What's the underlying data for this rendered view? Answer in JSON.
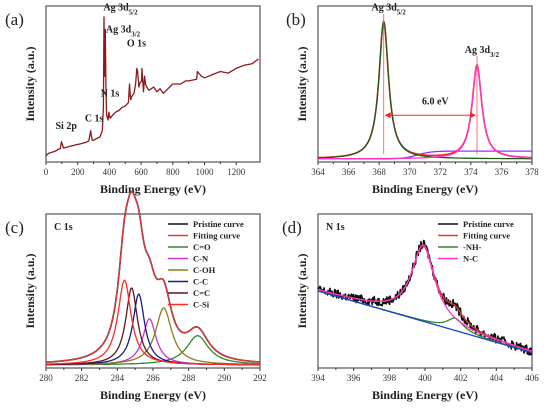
{
  "chart_data": [
    {
      "panel_label": "(a)",
      "type": "line",
      "xlabel": "Binding Energy (eV)",
      "ylabel": "Intensity (a.u.)",
      "xlim": [
        0,
        1350
      ],
      "xticks": [
        0,
        200,
        400,
        600,
        800,
        1000,
        1200
      ],
      "ylim": [
        0,
        1
      ],
      "series": [
        {
          "color": "#8b1a1a",
          "x": [
            0,
            15,
            30,
            45,
            60,
            75,
            90,
            98,
            110,
            130,
            150,
            170,
            190,
            210,
            230,
            250,
            270,
            282,
            286,
            292,
            300,
            320,
            340,
            355,
            362,
            366,
            368,
            371,
            374,
            378,
            382,
            392,
            397,
            400,
            405,
            420,
            440,
            460,
            480,
            500,
            520,
            527,
            532,
            535,
            540,
            555,
            565,
            573,
            578,
            582,
            586,
            590,
            603,
            605,
            615,
            622,
            628,
            635,
            650,
            680,
            700,
            720,
            740,
            760,
            780,
            800,
            850,
            880,
            900,
            950,
            955,
            980,
            1000,
            1050,
            1100,
            1150,
            1200,
            1250,
            1300,
            1340
          ],
          "y": [
            0.04,
            0.055,
            0.06,
            0.065,
            0.07,
            0.08,
            0.085,
            0.13,
            0.09,
            0.095,
            0.1,
            0.105,
            0.11,
            0.115,
            0.12,
            0.125,
            0.135,
            0.2,
            0.17,
            0.14,
            0.14,
            0.15,
            0.16,
            0.2,
            0.35,
            0.93,
            0.6,
            0.55,
            0.85,
            0.5,
            0.3,
            0.27,
            0.32,
            0.3,
            0.28,
            0.3,
            0.32,
            0.33,
            0.35,
            0.36,
            0.38,
            0.5,
            0.42,
            0.4,
            0.42,
            0.44,
            0.5,
            0.6,
            0.58,
            0.53,
            0.48,
            0.5,
            0.52,
            0.6,
            0.45,
            0.55,
            0.5,
            0.48,
            0.46,
            0.48,
            0.45,
            0.47,
            0.44,
            0.46,
            0.48,
            0.5,
            0.5,
            0.52,
            0.52,
            0.53,
            0.58,
            0.55,
            0.54,
            0.56,
            0.58,
            0.57,
            0.6,
            0.62,
            0.63,
            0.66
          ]
        }
      ],
      "annotations": [
        {
          "text": "Ag 3d",
          "sub": "5/2",
          "x": 362,
          "y": 0.97
        },
        {
          "text": "Ag 3d",
          "sub": "3/2",
          "x": 378,
          "y": 0.83
        },
        {
          "text": "O 1s",
          "x": 510,
          "y": 0.74
        },
        {
          "text": "N 1s",
          "x": 345,
          "y": 0.42
        },
        {
          "text": "C 1s",
          "x": 245,
          "y": 0.26
        },
        {
          "text": "Si 2p",
          "x": 60,
          "y": 0.21
        }
      ]
    },
    {
      "panel_label": "(b)",
      "type": "line",
      "xlabel": "Binding Energy (eV)",
      "ylabel": "Intensity (a.u.)",
      "xlim": [
        364,
        378
      ],
      "xticks": [
        364,
        366,
        368,
        370,
        372,
        374,
        376,
        378
      ],
      "ylim": [
        0,
        1
      ],
      "series": [
        {
          "role": "background",
          "color": "#9b30ff",
          "peaks": [],
          "baseline": [
            0.02,
            0.07
          ],
          "step_at": 370.5
        },
        {
          "role": "envelope",
          "color": "#ff2020",
          "peaks": [
            {
              "c": 368.3,
              "a": 0.88,
              "w": 0.38
            },
            {
              "c": 374.4,
              "a": 0.6,
              "w": 0.38
            }
          ]
        },
        {
          "role": "component",
          "color": "#1e5b1e",
          "peaks": [
            {
              "c": 368.3,
              "a": 0.88,
              "w": 0.38
            }
          ]
        },
        {
          "role": "component",
          "color": "#ff33cc",
          "peaks": [
            {
              "c": 374.4,
              "a": 0.6,
              "w": 0.38
            }
          ]
        }
      ],
      "annotations": [
        {
          "text": "Ag 3d",
          "sub": "5/2",
          "x": 367.5,
          "y": 0.97
        },
        {
          "text": "Ag 3d",
          "sub": "3/2",
          "x": 373.6,
          "y": 0.7
        },
        {
          "text": "6.0 eV",
          "x": 370.8,
          "y": 0.37
        }
      ],
      "dimension": {
        "x1": 368.3,
        "x2": 374.4,
        "y": 0.3
      }
    },
    {
      "panel_label": "(c)",
      "title": "C 1s",
      "type": "line",
      "xlabel": "Binding Energy (eV)",
      "ylabel": "Intensity (a.u.)",
      "xlim": [
        280,
        292
      ],
      "xticks": [
        280,
        282,
        284,
        286,
        288,
        290,
        292
      ],
      "ylim": [
        0,
        1
      ],
      "series": [
        {
          "name": "Pristine curve",
          "color": "#111111",
          "peaks": [
            {
              "c": 284.4,
              "a": 0.55,
              "w": 0.45
            },
            {
              "c": 284.8,
              "a": 0.5,
              "w": 0.4
            },
            {
              "c": 285.2,
              "a": 0.46,
              "w": 0.4
            },
            {
              "c": 285.8,
              "a": 0.3,
              "w": 0.45
            },
            {
              "c": 286.6,
              "a": 0.37,
              "w": 0.55
            },
            {
              "c": 288.5,
              "a": 0.19,
              "w": 0.75
            }
          ]
        },
        {
          "name": "Fitting curve",
          "color": "#e23a3a",
          "peaks": [
            {
              "c": 284.4,
              "a": 0.55,
              "w": 0.45
            },
            {
              "c": 284.8,
              "a": 0.5,
              "w": 0.4
            },
            {
              "c": 285.2,
              "a": 0.46,
              "w": 0.4
            },
            {
              "c": 285.8,
              "a": 0.3,
              "w": 0.45
            },
            {
              "c": 286.6,
              "a": 0.37,
              "w": 0.55
            },
            {
              "c": 288.5,
              "a": 0.19,
              "w": 0.75
            }
          ]
        },
        {
          "name": "C=O",
          "color": "#2e8b2e",
          "peaks": [
            {
              "c": 288.5,
              "a": 0.19,
              "w": 0.75
            }
          ]
        },
        {
          "name": "C-N",
          "color": "#cc33cc",
          "peaks": [
            {
              "c": 285.8,
              "a": 0.3,
              "w": 0.45
            }
          ]
        },
        {
          "name": "C-OH",
          "color": "#8b7d1a",
          "peaks": [
            {
              "c": 286.6,
              "a": 0.37,
              "w": 0.55
            }
          ]
        },
        {
          "name": "C-C",
          "color": "#1a1a8b",
          "peaks": [
            {
              "c": 285.2,
              "a": 0.46,
              "w": 0.4
            }
          ]
        },
        {
          "name": "C=C",
          "color": "#5a1a1a",
          "peaks": [
            {
              "c": 284.8,
              "a": 0.5,
              "w": 0.4
            }
          ]
        },
        {
          "name": "C-Si",
          "color": "#ff2a2a",
          "peaks": [
            {
              "c": 284.4,
              "a": 0.55,
              "w": 0.45
            }
          ]
        }
      ],
      "legend": "top-right"
    },
    {
      "panel_label": "(d)",
      "title": "N 1s",
      "type": "line",
      "xlabel": "Binding Energy (eV)",
      "ylabel": "Intensity (a.u.)",
      "xlim": [
        394,
        406
      ],
      "xticks": [
        394,
        396,
        398,
        400,
        402,
        404,
        406
      ],
      "ylim": [
        0,
        1
      ],
      "series": [
        {
          "name": "Pristine curve",
          "color": "#111111",
          "noisy": true,
          "baseline": [
            0.5,
            0.1
          ],
          "peaks": [
            {
              "c": 399.9,
              "a": 0.49,
              "w": 0.8
            },
            {
              "c": 401.7,
              "a": 0.08,
              "w": 0.55
            }
          ]
        },
        {
          "name": "Fitting curve",
          "color": "#e23a3a",
          "baseline": [
            0.5,
            0.1
          ],
          "peaks": [
            {
              "c": 399.9,
              "a": 0.49,
              "w": 0.8
            },
            {
              "c": 401.7,
              "a": 0.08,
              "w": 0.55
            }
          ]
        },
        {
          "name": "-NH-",
          "color": "#2e8b2e",
          "baseline": [
            0.5,
            0.1
          ],
          "peaks": [
            {
              "c": 401.7,
              "a": 0.08,
              "w": 0.55
            }
          ]
        },
        {
          "name": "N-C",
          "color": "#ff33cc",
          "baseline": [
            0.5,
            0.1
          ],
          "peaks": [
            {
              "c": 399.9,
              "a": 0.49,
              "w": 0.8
            }
          ]
        },
        {
          "role": "background",
          "color": "#1a44cc",
          "baseline": [
            0.5,
            0.1
          ],
          "peaks": []
        }
      ],
      "legend": "top-right"
    }
  ]
}
